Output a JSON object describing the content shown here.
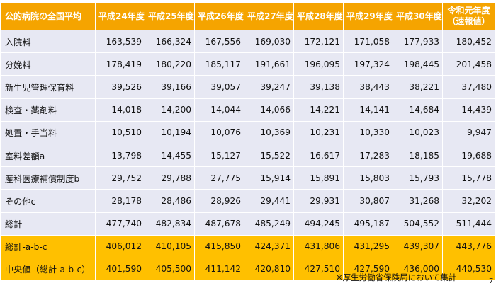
{
  "table": {
    "headers": [
      "公的病院の全国平均",
      "平成24年度",
      "平成25年度",
      "平成26年度",
      "平成27年度",
      "平成28年度",
      "平成29年度",
      "平成30年度",
      "令和元年度",
      "（速報値）"
    ],
    "rows": [
      {
        "label": "入院料",
        "values": [
          "163,539",
          "166,324",
          "167,556",
          "169,030",
          "172,121",
          "171,058",
          "177,933",
          "180,452"
        ]
      },
      {
        "label": "分娩料",
        "values": [
          "178,419",
          "180,220",
          "185,117",
          "191,661",
          "196,095",
          "197,324",
          "198,445",
          "201,458"
        ]
      },
      {
        "label": "新生児管理保育料",
        "values": [
          "39,526",
          "39,166",
          "39,057",
          "39,247",
          "39,138",
          "38,443",
          "38,221",
          "37,480"
        ]
      },
      {
        "label": "検査・薬剤料",
        "values": [
          "14,018",
          "14,200",
          "14,044",
          "14,066",
          "14,221",
          "14,141",
          "14,684",
          "14,439"
        ]
      },
      {
        "label": "処置・手当料",
        "values": [
          "10,510",
          "10,194",
          "10,076",
          "10,369",
          "10,231",
          "10,330",
          "10,023",
          "9,947"
        ]
      },
      {
        "label": "室料差額a",
        "values": [
          "13,798",
          "14,455",
          "15,127",
          "15,522",
          "16,617",
          "17,283",
          "18,185",
          "19,688"
        ]
      },
      {
        "label": "産科医療補償制度b",
        "values": [
          "29,752",
          "29,788",
          "27,775",
          "15,914",
          "15,891",
          "15,803",
          "15,793",
          "15,778"
        ]
      },
      {
        "label": "その他c",
        "values": [
          "28,178",
          "28,486",
          "28,926",
          "29,441",
          "29,931",
          "30,807",
          "31,268",
          "32,202"
        ]
      },
      {
        "label": "総計",
        "values": [
          "477,740",
          "482,834",
          "487,678",
          "485,249",
          "494,245",
          "495,187",
          "504,552",
          "511,444"
        ]
      },
      {
        "label": "総計-a-b-c",
        "values": [
          "406,012",
          "410,105",
          "415,850",
          "424,371",
          "431,806",
          "431,295",
          "439,307",
          "443,776"
        ]
      },
      {
        "label": "中央値（総計-a-b-c）",
        "values": [
          "401,590",
          "405,500",
          "411,142",
          "420,810",
          "427,510",
          "427,590",
          "436,000",
          "440,530"
        ]
      }
    ]
  },
  "footnote": "※厚生労働省保険局において集計",
  "page_number": "7",
  "colors": {
    "header_bg": "#f5a400",
    "header_text": "#ffffff",
    "row_bg": "#e7e8f3",
    "highlight_row_bg": "#ffc000"
  }
}
